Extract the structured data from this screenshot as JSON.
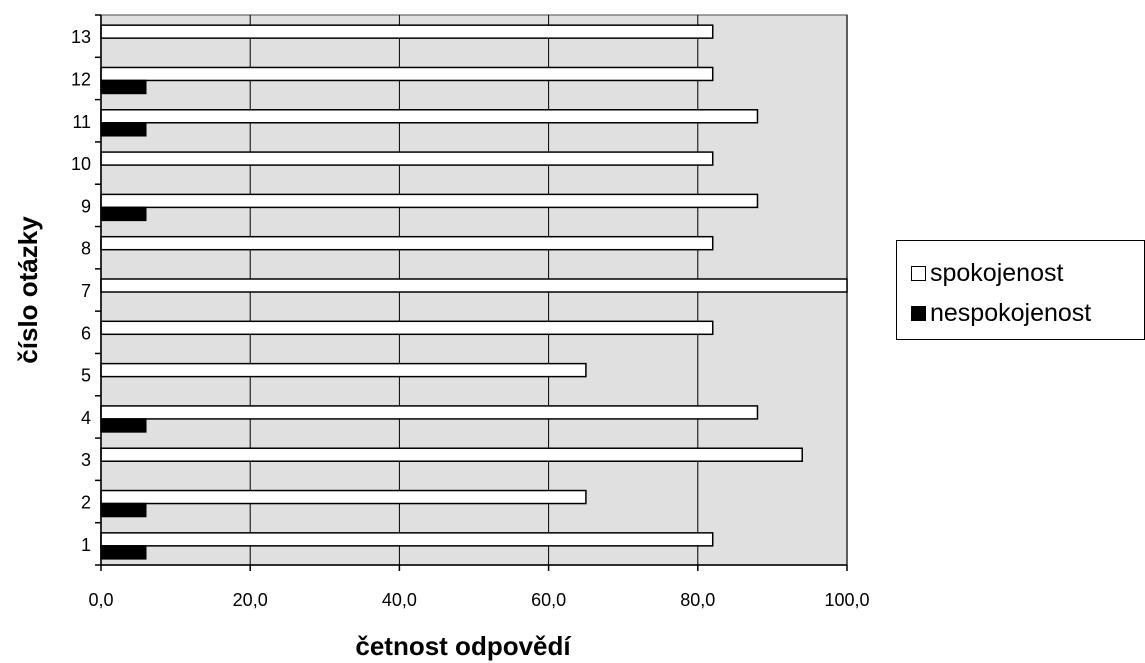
{
  "chart_data": {
    "type": "bar",
    "orientation": "horizontal",
    "categories": [
      "1",
      "2",
      "3",
      "4",
      "5",
      "6",
      "7",
      "8",
      "9",
      "10",
      "11",
      "12",
      "13"
    ],
    "series": [
      {
        "name": "spokojenost",
        "color": "#ffffff",
        "values": [
          82,
          65,
          94,
          88,
          65,
          82,
          100,
          82,
          88,
          82,
          88,
          82,
          82
        ]
      },
      {
        "name": "nespokojenost",
        "color": "#000000",
        "values": [
          6,
          6,
          0,
          6,
          0,
          0,
          0,
          0,
          6,
          0,
          6,
          6,
          0
        ]
      }
    ],
    "xlabel": "četnost odpovědí",
    "ylabel": "číslo otázky",
    "xlim": [
      0,
      100
    ],
    "x_ticks": [
      "0,0",
      "20,0",
      "40,0",
      "60,0",
      "80,0",
      "100,0"
    ],
    "x_tick_values": [
      0,
      20,
      40,
      60,
      80,
      100
    ],
    "grid": "vertical",
    "legend": "right",
    "plot_background": "#e0e0e0"
  }
}
